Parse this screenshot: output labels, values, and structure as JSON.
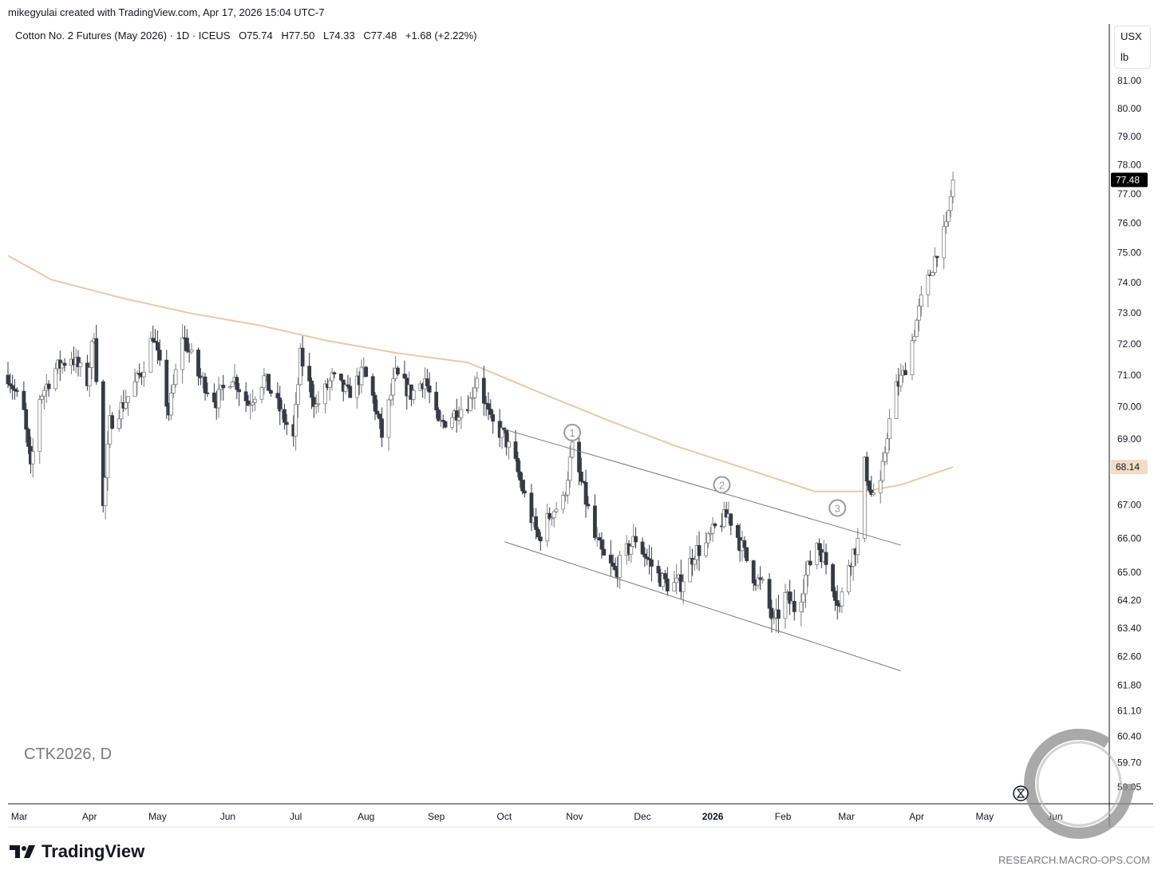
{
  "header": {
    "credit": "mikegyulai created with TradingView.com, Apr 17, 2026 15:04 UTC-7"
  },
  "legend": {
    "title": "Cotton No. 2 Futures (May 2026) · 1D · ICEUS",
    "open": "O75.74",
    "high": "H77.50",
    "low": "L74.33",
    "close": "C77.48",
    "change": "+1.68 (+2.22%)"
  },
  "units": {
    "currency": "USX",
    "unit": "lb"
  },
  "watermark": {
    "symbol": "CTK2026, D"
  },
  "footer": {
    "brand": "TradingView",
    "url": "RESEARCH.MACRO-OPS.COM"
  },
  "colors": {
    "up_candle_border": "#7f7f7f",
    "down_candle": "#363a45",
    "moving_average": "#e8c9a8",
    "channel_line": "#7a7a7a",
    "last_price_bg": "#000000",
    "ma_price_bg": "#f3dcc4"
  },
  "chart_data": {
    "type": "candlestick",
    "instrument": "Cotton No. 2 Futures (May 2026)",
    "interval": "1D",
    "exchange": "ICEUS",
    "y_ticks": [
      "81.00",
      "80.00",
      "79.00",
      "78.00",
      "77.00",
      "76.00",
      "75.00",
      "74.00",
      "73.00",
      "72.00",
      "71.00",
      "70.00",
      "69.00",
      "67.00",
      "66.00",
      "65.00",
      "64.20",
      "63.40",
      "62.60",
      "61.80",
      "61.10",
      "60.40",
      "59.70",
      "59.05"
    ],
    "x_ticks": [
      "Mar",
      "Apr",
      "May",
      "Jun",
      "Jul",
      "Aug",
      "Sep",
      "Oct",
      "Nov",
      "Dec",
      "2026",
      "Feb",
      "Mar",
      "Apr",
      "May",
      "Jun"
    ],
    "last_price_label": "77.48",
    "ma_price_label": "68.14",
    "x_range": [
      "2025-02-24",
      "2026-06-25"
    ],
    "y_scale": "log",
    "close_path": [
      {
        "date": "2025-02-24",
        "close": 71.0
      },
      {
        "date": "2025-03-03",
        "close": 69.8
      },
      {
        "date": "2025-03-06",
        "close": 68.0
      },
      {
        "date": "2025-03-10",
        "close": 70.3
      },
      {
        "date": "2025-03-17",
        "close": 71.2
      },
      {
        "date": "2025-03-24",
        "close": 71.6
      },
      {
        "date": "2025-03-31",
        "close": 70.8
      },
      {
        "date": "2025-04-03",
        "close": 72.4
      },
      {
        "date": "2025-04-07",
        "close": 66.9
      },
      {
        "date": "2025-04-10",
        "close": 69.5
      },
      {
        "date": "2025-04-17",
        "close": 70.2
      },
      {
        "date": "2025-04-24",
        "close": 71.1
      },
      {
        "date": "2025-04-29",
        "close": 72.3
      },
      {
        "date": "2025-05-06",
        "close": 69.8
      },
      {
        "date": "2025-05-12",
        "close": 72.3
      },
      {
        "date": "2025-05-19",
        "close": 71.0
      },
      {
        "date": "2025-05-27",
        "close": 70.2
      },
      {
        "date": "2025-06-03",
        "close": 71.0
      },
      {
        "date": "2025-06-10",
        "close": 70.1
      },
      {
        "date": "2025-06-17",
        "close": 70.9
      },
      {
        "date": "2025-06-24",
        "close": 69.9
      },
      {
        "date": "2025-06-30",
        "close": 69.0
      },
      {
        "date": "2025-07-03",
        "close": 71.6
      },
      {
        "date": "2025-07-10",
        "close": 70.0
      },
      {
        "date": "2025-07-17",
        "close": 70.9
      },
      {
        "date": "2025-07-24",
        "close": 70.4
      },
      {
        "date": "2025-07-31",
        "close": 71.1
      },
      {
        "date": "2025-08-04",
        "close": 70.3
      },
      {
        "date": "2025-08-08",
        "close": 69.1
      },
      {
        "date": "2025-08-14",
        "close": 71.0
      },
      {
        "date": "2025-08-21",
        "close": 70.4
      },
      {
        "date": "2025-08-27",
        "close": 70.9
      },
      {
        "date": "2025-09-02",
        "close": 69.4
      },
      {
        "date": "2025-09-09",
        "close": 69.8
      },
      {
        "date": "2025-09-16",
        "close": 70.2
      },
      {
        "date": "2025-09-19",
        "close": 71.0
      },
      {
        "date": "2025-09-25",
        "close": 69.5
      },
      {
        "date": "2025-10-01",
        "close": 69.1
      },
      {
        "date": "2025-10-06",
        "close": 68.2
      },
      {
        "date": "2025-10-11",
        "close": 67.0
      },
      {
        "date": "2025-10-16",
        "close": 66.0
      },
      {
        "date": "2025-10-22",
        "close": 66.8
      },
      {
        "date": "2025-10-27",
        "close": 67.1
      },
      {
        "date": "2025-10-31",
        "close": 68.7
      },
      {
        "date": "2025-11-05",
        "close": 67.4
      },
      {
        "date": "2025-11-10",
        "close": 66.0
      },
      {
        "date": "2025-11-14",
        "close": 65.4
      },
      {
        "date": "2025-11-19",
        "close": 65.0
      },
      {
        "date": "2025-11-24",
        "close": 65.6
      },
      {
        "date": "2025-11-28",
        "close": 66.0
      },
      {
        "date": "2025-12-03",
        "close": 65.4
      },
      {
        "date": "2025-12-08",
        "close": 64.9
      },
      {
        "date": "2025-12-13",
        "close": 64.6
      },
      {
        "date": "2025-12-18",
        "close": 64.7
      },
      {
        "date": "2025-12-24",
        "close": 65.6
      },
      {
        "date": "2025-12-29",
        "close": 65.8
      },
      {
        "date": "2026-01-03",
        "close": 66.4
      },
      {
        "date": "2026-01-08",
        "close": 66.7
      },
      {
        "date": "2026-01-13",
        "close": 65.9
      },
      {
        "date": "2026-01-18",
        "close": 65.0
      },
      {
        "date": "2026-01-23",
        "close": 64.6
      },
      {
        "date": "2026-01-28",
        "close": 63.5
      },
      {
        "date": "2026-02-02",
        "close": 64.3
      },
      {
        "date": "2026-02-07",
        "close": 63.9
      },
      {
        "date": "2026-02-11",
        "close": 64.9
      },
      {
        "date": "2026-02-16",
        "close": 65.9
      },
      {
        "date": "2026-02-21",
        "close": 65.1
      },
      {
        "date": "2026-02-26",
        "close": 64.0
      },
      {
        "date": "2026-03-02",
        "close": 65.3
      },
      {
        "date": "2026-03-06",
        "close": 65.9
      },
      {
        "date": "2026-03-09",
        "close": 68.2
      },
      {
        "date": "2026-03-12",
        "close": 67.3
      },
      {
        "date": "2026-03-16",
        "close": 67.5
      },
      {
        "date": "2026-03-19",
        "close": 69.2
      },
      {
        "date": "2026-03-23",
        "close": 70.6
      },
      {
        "date": "2026-03-26",
        "close": 71.0
      },
      {
        "date": "2026-03-30",
        "close": 72.1
      },
      {
        "date": "2026-04-03",
        "close": 73.4
      },
      {
        "date": "2026-04-07",
        "close": 74.3
      },
      {
        "date": "2026-04-10",
        "close": 75.1
      },
      {
        "date": "2026-04-14",
        "close": 75.8
      },
      {
        "date": "2026-04-17",
        "close": 77.48
      }
    ],
    "moving_average": [
      {
        "date": "2025-02-24",
        "value": 74.9
      },
      {
        "date": "2025-03-15",
        "value": 74.1
      },
      {
        "date": "2025-04-15",
        "value": 73.5
      },
      {
        "date": "2025-05-15",
        "value": 73.0
      },
      {
        "date": "2025-06-15",
        "value": 72.6
      },
      {
        "date": "2025-07-15",
        "value": 72.1
      },
      {
        "date": "2025-08-15",
        "value": 71.7
      },
      {
        "date": "2025-09-15",
        "value": 71.4
      },
      {
        "date": "2025-10-15",
        "value": 70.5
      },
      {
        "date": "2025-11-15",
        "value": 69.6
      },
      {
        "date": "2025-12-15",
        "value": 68.8
      },
      {
        "date": "2026-01-15",
        "value": 68.1
      },
      {
        "date": "2026-02-15",
        "value": 67.4
      },
      {
        "date": "2026-03-09",
        "value": 67.4
      },
      {
        "date": "2026-03-25",
        "value": 67.6
      },
      {
        "date": "2026-04-17",
        "value": 68.14
      }
    ],
    "channel": {
      "upper": [
        {
          "date": "2025-10-01",
          "price": 69.3
        },
        {
          "date": "2026-03-25",
          "price": 65.8
        }
      ],
      "lower": [
        {
          "date": "2025-10-01",
          "price": 65.9
        },
        {
          "date": "2026-03-25",
          "price": 62.2
        }
      ]
    },
    "annotations": [
      {
        "label": "1",
        "date": "2025-10-31",
        "price": 69.2
      },
      {
        "label": "2",
        "date": "2026-01-05",
        "price": 67.6
      },
      {
        "label": "3",
        "date": "2026-02-25",
        "price": 66.9
      }
    ]
  }
}
